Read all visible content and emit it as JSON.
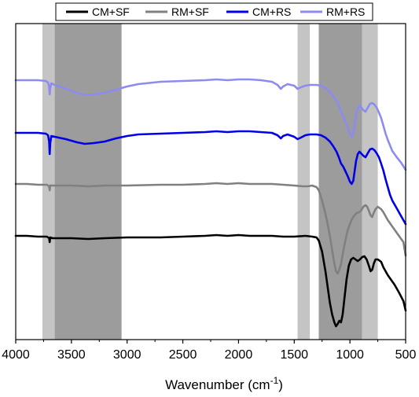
{
  "chart_data": {
    "type": "line",
    "xlabel": "Wavenumber (cm",
    "xlabel_sup": "-1",
    "xlabel_close": ")",
    "ylabel": "",
    "xlim": [
      4000,
      500
    ],
    "x_reversed": true,
    "x_ticks": [
      4000,
      3500,
      3000,
      2500,
      2000,
      1500,
      1000,
      500
    ],
    "y_ticks_shown": false,
    "grid": false,
    "legend_placement": "top, outside plot (boxed, single row)",
    "shaded_bands": [
      {
        "from": 3760,
        "to": 3650,
        "shade": "light",
        "color": "#c4c4c4"
      },
      {
        "from": 3650,
        "to": 3050,
        "shade": "dark",
        "color": "#9c9c9c"
      },
      {
        "from": 1470,
        "to": 1360,
        "shade": "light",
        "color": "#c4c4c4"
      },
      {
        "from": 1280,
        "to": 890,
        "shade": "dark",
        "color": "#9c9c9c"
      },
      {
        "from": 890,
        "to": 750,
        "shade": "light",
        "color": "#c4c4c4"
      }
    ],
    "series": [
      {
        "name": "CM+SF",
        "color": "#000000",
        "points": [
          [
            4000,
            300
          ],
          [
            3900,
            300
          ],
          [
            3800,
            301
          ],
          [
            3720,
            301
          ],
          [
            3700,
            303
          ],
          [
            3695,
            308
          ],
          [
            3690,
            302
          ],
          [
            3670,
            303
          ],
          [
            3500,
            303
          ],
          [
            3350,
            304
          ],
          [
            3200,
            303
          ],
          [
            3000,
            302
          ],
          [
            2700,
            302
          ],
          [
            2500,
            301
          ],
          [
            2300,
            300
          ],
          [
            2200,
            299
          ],
          [
            2100,
            300
          ],
          [
            2000,
            299
          ],
          [
            1900,
            300
          ],
          [
            1800,
            300
          ],
          [
            1700,
            300
          ],
          [
            1600,
            301
          ],
          [
            1500,
            301
          ],
          [
            1400,
            300
          ],
          [
            1340,
            301
          ],
          [
            1300,
            302
          ],
          [
            1280,
            306
          ],
          [
            1250,
            320
          ],
          [
            1220,
            345
          ],
          [
            1200,
            365
          ],
          [
            1180,
            385
          ],
          [
            1160,
            400
          ],
          [
            1140,
            410
          ],
          [
            1125,
            415
          ],
          [
            1110,
            412
          ],
          [
            1095,
            408
          ],
          [
            1080,
            410
          ],
          [
            1065,
            400
          ],
          [
            1050,
            380
          ],
          [
            1030,
            355
          ],
          [
            1010,
            338
          ],
          [
            990,
            330
          ],
          [
            970,
            328
          ],
          [
            950,
            330
          ],
          [
            930,
            332
          ],
          [
            910,
            330
          ],
          [
            890,
            327
          ],
          [
            870,
            326
          ],
          [
            850,
            330
          ],
          [
            830,
            338
          ],
          [
            815,
            345
          ],
          [
            800,
            343
          ],
          [
            785,
            335
          ],
          [
            770,
            330
          ],
          [
            750,
            330
          ],
          [
            720,
            333
          ],
          [
            700,
            340
          ],
          [
            660,
            350
          ],
          [
            600,
            362
          ],
          [
            560,
            372
          ],
          [
            520,
            383
          ],
          [
            500,
            395
          ]
        ]
      },
      {
        "name": "RM+SF",
        "color": "#808080",
        "points": [
          [
            4000,
            234
          ],
          [
            3900,
            234
          ],
          [
            3800,
            235
          ],
          [
            3720,
            235
          ],
          [
            3700,
            237
          ],
          [
            3695,
            242
          ],
          [
            3690,
            236
          ],
          [
            3670,
            236
          ],
          [
            3500,
            236
          ],
          [
            3350,
            237
          ],
          [
            3200,
            236
          ],
          [
            3000,
            236
          ],
          [
            2700,
            235
          ],
          [
            2500,
            235
          ],
          [
            2300,
            234
          ],
          [
            2200,
            233
          ],
          [
            2100,
            234
          ],
          [
            2000,
            233
          ],
          [
            1900,
            234
          ],
          [
            1800,
            234
          ],
          [
            1700,
            234
          ],
          [
            1600,
            235
          ],
          [
            1500,
            236
          ],
          [
            1420,
            237
          ],
          [
            1380,
            237
          ],
          [
            1340,
            236
          ],
          [
            1300,
            238
          ],
          [
            1280,
            242
          ],
          [
            1250,
            255
          ],
          [
            1220,
            272
          ],
          [
            1200,
            285
          ],
          [
            1180,
            300
          ],
          [
            1160,
            318
          ],
          [
            1140,
            335
          ],
          [
            1125,
            345
          ],
          [
            1110,
            348
          ],
          [
            1095,
            343
          ],
          [
            1080,
            336
          ],
          [
            1060,
            320
          ],
          [
            1040,
            305
          ],
          [
            1020,
            293
          ],
          [
            1000,
            285
          ],
          [
            980,
            278
          ],
          [
            960,
            274
          ],
          [
            940,
            271
          ],
          [
            920,
            270
          ],
          [
            900,
            268
          ],
          [
            880,
            263
          ],
          [
            860,
            261
          ],
          [
            845,
            263
          ],
          [
            830,
            268
          ],
          [
            815,
            274
          ],
          [
            800,
            276
          ],
          [
            790,
            272
          ],
          [
            770,
            266
          ],
          [
            750,
            263
          ],
          [
            720,
            266
          ],
          [
            700,
            270
          ],
          [
            660,
            280
          ],
          [
            600,
            292
          ],
          [
            560,
            300
          ],
          [
            520,
            308
          ],
          [
            500,
            325
          ]
        ]
      },
      {
        "name": "CM+RS",
        "color": "#0000e6",
        "points": [
          [
            4000,
            169
          ],
          [
            3900,
            169
          ],
          [
            3800,
            169
          ],
          [
            3730,
            170
          ],
          [
            3710,
            172
          ],
          [
            3700,
            180
          ],
          [
            3695,
            196
          ],
          [
            3690,
            182
          ],
          [
            3680,
            173
          ],
          [
            3650,
            174
          ],
          [
            3550,
            177
          ],
          [
            3450,
            181
          ],
          [
            3380,
            183
          ],
          [
            3300,
            182
          ],
          [
            3200,
            180
          ],
          [
            3100,
            176
          ],
          [
            3000,
            173
          ],
          [
            2900,
            171
          ],
          [
            2700,
            170
          ],
          [
            2500,
            169
          ],
          [
            2300,
            168
          ],
          [
            2200,
            167
          ],
          [
            2100,
            168
          ],
          [
            2000,
            167
          ],
          [
            1900,
            167
          ],
          [
            1800,
            168
          ],
          [
            1700,
            169
          ],
          [
            1650,
            172
          ],
          [
            1620,
            176
          ],
          [
            1600,
            173
          ],
          [
            1560,
            171
          ],
          [
            1500,
            174
          ],
          [
            1470,
            177
          ],
          [
            1440,
            175
          ],
          [
            1400,
            172
          ],
          [
            1360,
            171
          ],
          [
            1300,
            171
          ],
          [
            1260,
            172
          ],
          [
            1220,
            175
          ],
          [
            1180,
            180
          ],
          [
            1150,
            186
          ],
          [
            1120,
            193
          ],
          [
            1100,
            200
          ],
          [
            1080,
            208
          ],
          [
            1060,
            212
          ],
          [
            1040,
            218
          ],
          [
            1020,
            224
          ],
          [
            1000,
            231
          ],
          [
            985,
            234
          ],
          [
            970,
            230
          ],
          [
            960,
            220
          ],
          [
            945,
            205
          ],
          [
            930,
            196
          ],
          [
            915,
            193
          ],
          [
            900,
            195
          ],
          [
            880,
            198
          ],
          [
            860,
            200
          ],
          [
            840,
            195
          ],
          [
            820,
            190
          ],
          [
            800,
            189
          ],
          [
            780,
            191
          ],
          [
            760,
            195
          ],
          [
            740,
            200
          ],
          [
            720,
            208
          ],
          [
            700,
            217
          ],
          [
            680,
            228
          ],
          [
            660,
            238
          ],
          [
            640,
            248
          ],
          [
            620,
            255
          ],
          [
            580,
            265
          ],
          [
            540,
            275
          ],
          [
            500,
            285
          ]
        ]
      },
      {
        "name": "RM+RS",
        "color": "#8c8cf0",
        "points": [
          [
            4000,
            102
          ],
          [
            3900,
            102
          ],
          [
            3800,
            102
          ],
          [
            3730,
            103
          ],
          [
            3710,
            105
          ],
          [
            3700,
            110
          ],
          [
            3695,
            120
          ],
          [
            3690,
            112
          ],
          [
            3680,
            106
          ],
          [
            3650,
            108
          ],
          [
            3550,
            113
          ],
          [
            3450,
            118
          ],
          [
            3380,
            121
          ],
          [
            3300,
            120
          ],
          [
            3200,
            118
          ],
          [
            3100,
            114
          ],
          [
            3000,
            110
          ],
          [
            2900,
            107
          ],
          [
            2700,
            104
          ],
          [
            2500,
            103
          ],
          [
            2300,
            102
          ],
          [
            2200,
            101
          ],
          [
            2100,
            102
          ],
          [
            2000,
            101
          ],
          [
            1900,
            101
          ],
          [
            1800,
            102
          ],
          [
            1700,
            104
          ],
          [
            1650,
            108
          ],
          [
            1620,
            113
          ],
          [
            1600,
            110
          ],
          [
            1560,
            107
          ],
          [
            1500,
            109
          ],
          [
            1470,
            113
          ],
          [
            1440,
            111
          ],
          [
            1400,
            109
          ],
          [
            1360,
            108
          ],
          [
            1300,
            108
          ],
          [
            1260,
            109
          ],
          [
            1220,
            112
          ],
          [
            1180,
            117
          ],
          [
            1150,
            122
          ],
          [
            1120,
            128
          ],
          [
            1100,
            134
          ],
          [
            1080,
            142
          ],
          [
            1060,
            148
          ],
          [
            1040,
            155
          ],
          [
            1020,
            162
          ],
          [
            1000,
            170
          ],
          [
            985,
            174
          ],
          [
            970,
            170
          ],
          [
            960,
            160
          ],
          [
            945,
            147
          ],
          [
            930,
            137
          ],
          [
            915,
            134
          ],
          [
            900,
            136
          ],
          [
            880,
            140
          ],
          [
            860,
            142
          ],
          [
            840,
            137
          ],
          [
            820,
            132
          ],
          [
            800,
            131
          ],
          [
            780,
            133
          ],
          [
            760,
            137
          ],
          [
            740,
            143
          ],
          [
            720,
            150
          ],
          [
            700,
            160
          ],
          [
            680,
            170
          ],
          [
            660,
            178
          ],
          [
            640,
            185
          ],
          [
            620,
            192
          ],
          [
            580,
            200
          ],
          [
            540,
            207
          ],
          [
            500,
            216
          ]
        ]
      }
    ]
  }
}
